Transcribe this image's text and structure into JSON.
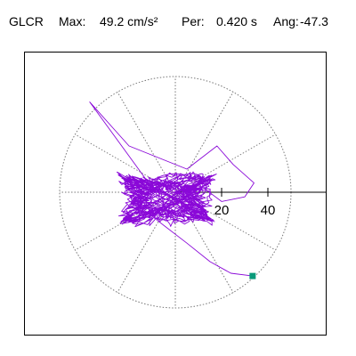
{
  "header": {
    "station": "GLCR",
    "max_label": "Max:",
    "max_value": "49.2 cm/s²",
    "period_label": "Per:",
    "period_value": "0.420 s",
    "angle_label": "Ang:",
    "angle_value": "-47.3"
  },
  "chart_data": {
    "type": "scatter",
    "subtype": "polar particle-motion orbit",
    "title": "",
    "radial_ticks": [
      "20",
      "40"
    ],
    "radial_tick_values": [
      20,
      40
    ],
    "radial_max": 50,
    "angular_gridline_step_deg": 30,
    "grid": true,
    "grid_style": "dotted",
    "colors": {
      "trace": "#8a08d8",
      "end_marker": "#0a9a7a",
      "grid": "#777777",
      "axis": "#000000"
    },
    "max_value": 49.2,
    "max_units": "cm/s²",
    "period_s": 0.42,
    "angle_deg": -47.3,
    "end_point": {
      "x": 33.4,
      "y": -36.2
    }
  }
}
